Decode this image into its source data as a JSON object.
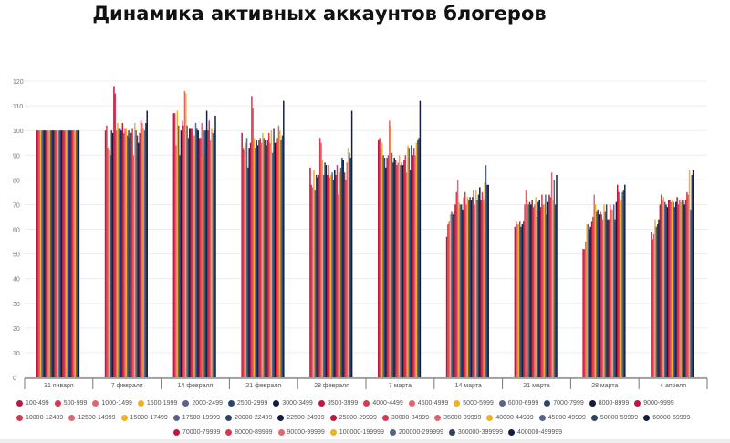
{
  "chart_data": {
    "type": "bar",
    "title": "Динамика активных аккаунтов блогеров",
    "xlabel": "",
    "ylabel": "",
    "ylim": [
      0,
      120
    ],
    "yticks": [
      0,
      10,
      20,
      30,
      40,
      50,
      60,
      70,
      80,
      90,
      100,
      110,
      120
    ],
    "grid": true,
    "legend_placement": "bottom",
    "categories": [
      "31 января",
      "7 февраля",
      "14 февраля",
      "21 февраля",
      "28 февраля",
      "7 марта",
      "14 марта",
      "21 марта",
      "28 марта",
      "4 апреля"
    ],
    "palette": [
      "#c0173f",
      "#d63a50",
      "#e06670",
      "#f0b02a",
      "#56658a",
      "#2c4566",
      "#0f1f44"
    ],
    "series_names": [
      "100-499",
      "500-999",
      "1000-1499",
      "1500-1999",
      "2000-2499",
      "2500-2999",
      "3000-3499",
      "3500-3999",
      "4000-4499",
      "4500-4999",
      "5000-5999",
      "6000-6999",
      "7000-7999",
      "8000-8999",
      "9000-9999",
      "10000-12499",
      "12500-14999",
      "15000-17499",
      "17500-19999",
      "20000-22499",
      "22500-24999",
      "25000-29999",
      "30000-34999",
      "35000-39999",
      "40000-44999",
      "45000-49999",
      "50000-59999",
      "60000-69999",
      "70000-79999",
      "80000-89999",
      "90000-99999",
      "100000-199999",
      "200000-299999",
      "300000-399999",
      "400000-499999"
    ],
    "values_by_category": [
      [
        100,
        100,
        100,
        100,
        100,
        100,
        100,
        100,
        100,
        100,
        100,
        100,
        100,
        100,
        100,
        100,
        100,
        100,
        100,
        100,
        100,
        100,
        100,
        100,
        100,
        100,
        100,
        100,
        100,
        100,
        100,
        100,
        100,
        100,
        100
      ],
      [
        100,
        102,
        93,
        92,
        90,
        100,
        99,
        118,
        115,
        100,
        103,
        101,
        101,
        100,
        103,
        99,
        101,
        101,
        98,
        100,
        97,
        99,
        101,
        90,
        103,
        100,
        98,
        95,
        99,
        104,
        103,
        101,
        100,
        103,
        108
      ],
      [
        107,
        107,
        94,
        108,
        102,
        90,
        100,
        104,
        102,
        116,
        115,
        102,
        97,
        101,
        101,
        101,
        98,
        98,
        103,
        101,
        100,
        97,
        97,
        103,
        90,
        100,
        100,
        108,
        100,
        104,
        96,
        101,
        99,
        100,
        106
      ],
      [
        99,
        93,
        92,
        95,
        97,
        85,
        93,
        95,
        114,
        109,
        97,
        93,
        96,
        94,
        96,
        97,
        95,
        99,
        97,
        96,
        94,
        96,
        99,
        95,
        100,
        91,
        101,
        95,
        95,
        97,
        102,
        100,
        96,
        98,
        112
      ],
      [
        85,
        78,
        77,
        84,
        76,
        82,
        81,
        82,
        97,
        95,
        88,
        82,
        87,
        86,
        82,
        86,
        81,
        82,
        83,
        80,
        84,
        82,
        86,
        74,
        83,
        85,
        89,
        88,
        83,
        80,
        87,
        93,
        91,
        89,
        108
      ],
      [
        96,
        97,
        92,
        95,
        90,
        89,
        85,
        89,
        90,
        104,
        102,
        91,
        87,
        89,
        88,
        86,
        87,
        90,
        86,
        87,
        86,
        88,
        90,
        83,
        94,
        93,
        84,
        94,
        90,
        93,
        90,
        95,
        96,
        97,
        112
      ],
      [
        57,
        62,
        63,
        66,
        67,
        66,
        67,
        70,
        75,
        80,
        71,
        70,
        70,
        68,
        73,
        75,
        70,
        73,
        72,
        73,
        72,
        73,
        76,
        70,
        76,
        72,
        74,
        77,
        72,
        75,
        72,
        79,
        86,
        78,
        78
      ],
      [
        61,
        63,
        62,
        62,
        63,
        61,
        62,
        63,
        70,
        76,
        72,
        70,
        71,
        70,
        72,
        69,
        70,
        73,
        65,
        71,
        72,
        69,
        74,
        70,
        70,
        74,
        66,
        71,
        74,
        73,
        83,
        72,
        80,
        70,
        82
      ],
      [
        52,
        52,
        55,
        62,
        62,
        60,
        61,
        63,
        65,
        74,
        70,
        67,
        68,
        66,
        67,
        66,
        64,
        70,
        67,
        70,
        64,
        64,
        70,
        68,
        68,
        70,
        64,
        71,
        78,
        75,
        66,
        72,
        75,
        76,
        78
      ],
      [
        59,
        56,
        58,
        64,
        61,
        62,
        64,
        70,
        74,
        72,
        73,
        71,
        70,
        69,
        72,
        72,
        71,
        72,
        71,
        69,
        71,
        73,
        70,
        72,
        71,
        72,
        72,
        70,
        72,
        75,
        74,
        84,
        68,
        82,
        84
      ]
    ]
  }
}
